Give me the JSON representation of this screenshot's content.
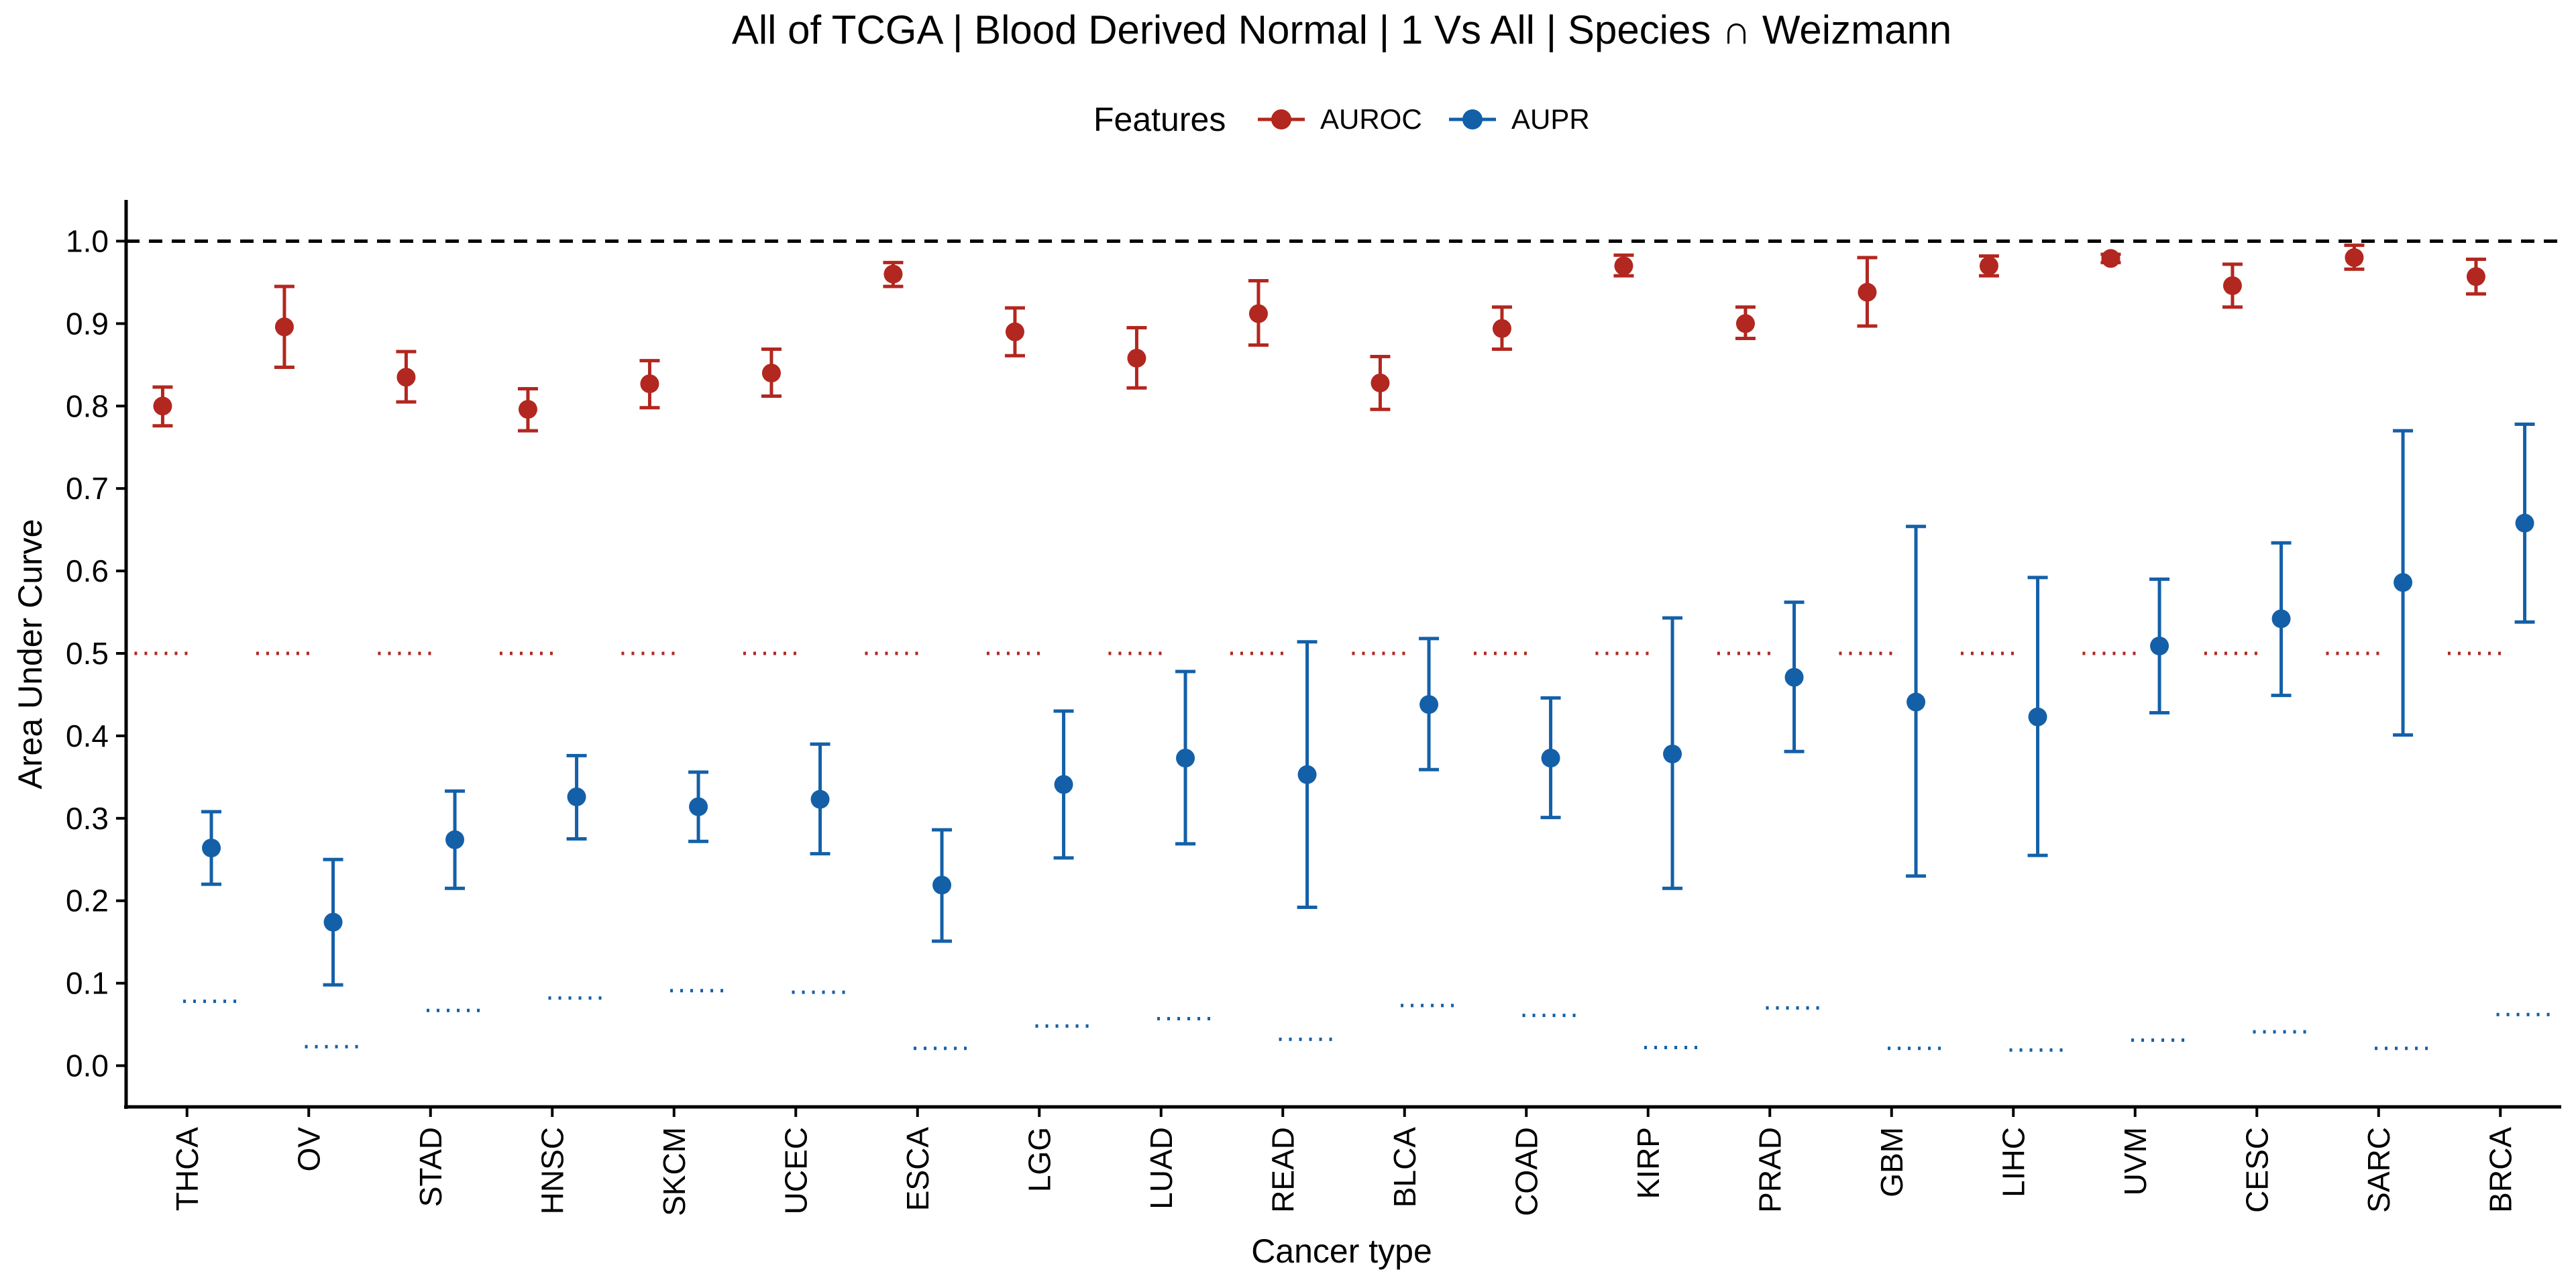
{
  "chart_data": {
    "type": "errorbar",
    "title": "All of TCGA | Blood Derived Normal | 1 Vs All | Species ∩ Weizmann",
    "xlabel": "Cancer type",
    "ylabel": "Area Under Curve",
    "ylim": [
      -0.05,
      1.05
    ],
    "yticks": [
      "0.0",
      "0.1",
      "0.2",
      "0.3",
      "0.4",
      "0.5",
      "0.6",
      "0.7",
      "0.8",
      "0.9",
      "1.0"
    ],
    "reference_line": 1.0,
    "legend": {
      "title": "Features",
      "placement": "top"
    },
    "categories": [
      "THCA",
      "OV",
      "STAD",
      "HNSC",
      "SKCM",
      "UCEC",
      "ESCA",
      "LGG",
      "LUAD",
      "READ",
      "BLCA",
      "COAD",
      "KIRP",
      "PRAD",
      "GBM",
      "LIHC",
      "UVM",
      "CESC",
      "SARC",
      "BRCA"
    ],
    "series": [
      {
        "name": "AUROC",
        "color": "#B2271F",
        "values": [
          0.8,
          0.896,
          0.835,
          0.796,
          0.827,
          0.84,
          0.96,
          0.89,
          0.858,
          0.912,
          0.828,
          0.894,
          0.97,
          0.9,
          0.938,
          0.97,
          0.979,
          0.946,
          0.98,
          0.957
        ],
        "lower": [
          0.776,
          0.847,
          0.805,
          0.77,
          0.798,
          0.812,
          0.945,
          0.861,
          0.822,
          0.874,
          0.796,
          0.869,
          0.958,
          0.882,
          0.897,
          0.958,
          0.974,
          0.92,
          0.966,
          0.936
        ],
        "upper": [
          0.823,
          0.945,
          0.866,
          0.821,
          0.855,
          0.869,
          0.974,
          0.919,
          0.895,
          0.952,
          0.86,
          0.92,
          0.983,
          0.92,
          0.98,
          0.982,
          0.984,
          0.972,
          0.995,
          0.978
        ],
        "baseline": [
          0.5,
          0.5,
          0.5,
          0.5,
          0.5,
          0.5,
          0.5,
          0.5,
          0.5,
          0.5,
          0.5,
          0.5,
          0.5,
          0.5,
          0.5,
          0.5,
          0.5,
          0.5,
          0.5,
          0.5
        ]
      },
      {
        "name": "AUPR",
        "color": "#1460A8",
        "values": [
          0.264,
          0.174,
          0.274,
          0.326,
          0.314,
          0.323,
          0.219,
          0.341,
          0.373,
          0.353,
          0.438,
          0.373,
          0.378,
          0.471,
          0.441,
          0.423,
          0.509,
          0.542,
          0.586,
          0.658
        ],
        "lower": [
          0.22,
          0.098,
          0.215,
          0.275,
          0.272,
          0.257,
          0.151,
          0.252,
          0.269,
          0.192,
          0.359,
          0.301,
          0.215,
          0.381,
          0.23,
          0.255,
          0.428,
          0.449,
          0.401,
          0.538
        ],
        "upper": [
          0.308,
          0.25,
          0.333,
          0.376,
          0.356,
          0.39,
          0.286,
          0.43,
          0.478,
          0.514,
          0.518,
          0.446,
          0.543,
          0.562,
          0.654,
          0.592,
          0.59,
          0.634,
          0.77,
          0.778
        ],
        "baseline": [
          0.078,
          0.023,
          0.067,
          0.082,
          0.091,
          0.089,
          0.021,
          0.048,
          0.057,
          0.032,
          0.073,
          0.061,
          0.022,
          0.07,
          0.021,
          0.019,
          0.031,
          0.041,
          0.021,
          0.062
        ]
      }
    ]
  }
}
